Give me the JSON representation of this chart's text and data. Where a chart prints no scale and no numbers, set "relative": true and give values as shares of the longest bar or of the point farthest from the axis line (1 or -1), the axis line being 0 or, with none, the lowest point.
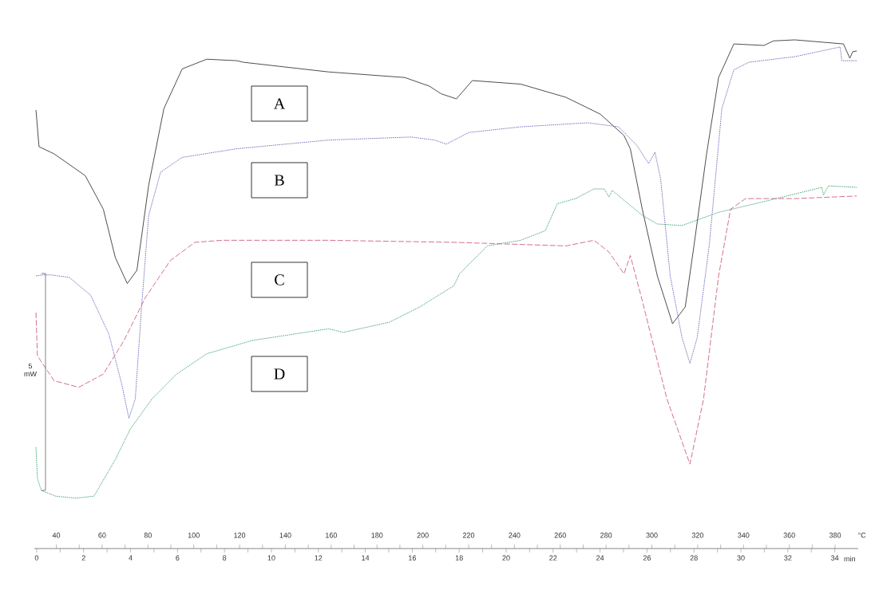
{
  "chart_data": {
    "type": "line",
    "relative": true,
    "xlabel": "min",
    "x2label": "°C",
    "xlim": [
      -0.1,
      35
    ],
    "xticks": [
      0,
      2,
      4,
      6,
      8,
      10,
      12,
      14,
      16,
      18,
      20,
      22,
      24,
      26,
      28,
      30,
      32,
      34
    ],
    "x2lim": [
      30.4,
      390.1
    ],
    "x2ticks": [
      40,
      60,
      80,
      100,
      120,
      140,
      160,
      180,
      200,
      220,
      240,
      260,
      280,
      300,
      320,
      340,
      360,
      380
    ],
    "annotations": [
      "5 mW"
    ],
    "series": [
      {
        "name": "A",
        "color": "#3a3a3a",
        "line_style": "solid",
        "x": [
          -0.03,
          0.1,
          0.74,
          2.07,
          2.84,
          3.35,
          3.86,
          4.27,
          4.77,
          5.42,
          6.2,
          7.25,
          8.53,
          8.8,
          12.43,
          15.68,
          16.73,
          17.23,
          17.88,
          18.56,
          20.62,
          22.55,
          24.01,
          25.02,
          25.29,
          25.8,
          26.44,
          27.09,
          27.63,
          28.0,
          28.54,
          29.05,
          29.7,
          30.98,
          31.39,
          32.3,
          34.37,
          34.64,
          34.77,
          34.94
        ],
        "values": [
          0.862,
          0.79,
          0.776,
          0.733,
          0.667,
          0.572,
          0.521,
          0.547,
          0.714,
          0.865,
          0.943,
          0.962,
          0.959,
          0.956,
          0.937,
          0.926,
          0.909,
          0.894,
          0.884,
          0.92,
          0.913,
          0.887,
          0.854,
          0.812,
          0.786,
          0.667,
          0.536,
          0.442,
          0.475,
          0.595,
          0.776,
          0.926,
          0.992,
          0.989,
          0.998,
          1.0,
          0.992,
          0.964,
          0.977,
          0.978
        ]
      },
      {
        "name": "B",
        "color": "#6a6ab8",
        "line_style": "dotted",
        "x": [
          -0.03,
          0.24,
          0.61,
          1.39,
          2.3,
          3.08,
          3.62,
          3.93,
          4.2,
          4.47,
          4.77,
          5.28,
          6.2,
          8.53,
          12.43,
          15.95,
          16.96,
          17.44,
          18.42,
          20.62,
          23.46,
          24.79,
          25.56,
          26.07,
          26.34,
          26.58,
          26.99,
          27.49,
          27.83,
          28.14,
          28.65,
          29.19,
          29.7,
          30.34,
          32.3,
          34.23,
          34.3,
          34.94
        ],
        "values": [
          0.536,
          0.538,
          0.538,
          0.533,
          0.498,
          0.421,
          0.324,
          0.256,
          0.294,
          0.475,
          0.655,
          0.74,
          0.769,
          0.786,
          0.803,
          0.809,
          0.803,
          0.795,
          0.818,
          0.829,
          0.837,
          0.829,
          0.793,
          0.757,
          0.779,
          0.727,
          0.536,
          0.415,
          0.364,
          0.415,
          0.595,
          0.865,
          0.941,
          0.956,
          0.967,
          0.986,
          0.959,
          0.959
        ]
      },
      {
        "name": "C",
        "color": "#d0607e",
        "line_style": "dashed",
        "x": [
          -0.03,
          0.03,
          0.74,
          1.79,
          2.84,
          3.72,
          4.64,
          5.69,
          6.74,
          7.89,
          12.43,
          17.78,
          22.55,
          23.74,
          24.38,
          25.02,
          25.29,
          25.8,
          26.85,
          27.83,
          28.41,
          29.05,
          29.56,
          30.2,
          32.3,
          34.94
        ],
        "values": [
          0.464,
          0.379,
          0.33,
          0.317,
          0.343,
          0.409,
          0.494,
          0.566,
          0.602,
          0.606,
          0.606,
          0.602,
          0.595,
          0.606,
          0.583,
          0.54,
          0.576,
          0.487,
          0.294,
          0.166,
          0.294,
          0.536,
          0.667,
          0.688,
          0.688,
          0.693
        ]
      },
      {
        "name": "D",
        "color": "#3fa06e",
        "line_style": "dotted",
        "x": [
          -0.03,
          0.03,
          0.2,
          0.81,
          1.66,
          2.44,
          3.35,
          3.99,
          4.91,
          5.96,
          7.25,
          9.18,
          12.43,
          13.07,
          15.03,
          16.32,
          17.78,
          18.01,
          19.2,
          20.62,
          21.67,
          22.18,
          22.96,
          23.74,
          24.18,
          24.38,
          24.52,
          25.8,
          26.44,
          27.49,
          29.05,
          30.98,
          33.45,
          33.52,
          33.73,
          34.94
        ],
        "values": [
          0.199,
          0.138,
          0.114,
          0.103,
          0.099,
          0.103,
          0.175,
          0.235,
          0.294,
          0.343,
          0.383,
          0.409,
          0.432,
          0.425,
          0.445,
          0.475,
          0.517,
          0.54,
          0.595,
          0.606,
          0.625,
          0.678,
          0.688,
          0.707,
          0.707,
          0.691,
          0.704,
          0.655,
          0.638,
          0.635,
          0.661,
          0.682,
          0.71,
          0.695,
          0.713,
          0.71
        ]
      }
    ]
  }
}
